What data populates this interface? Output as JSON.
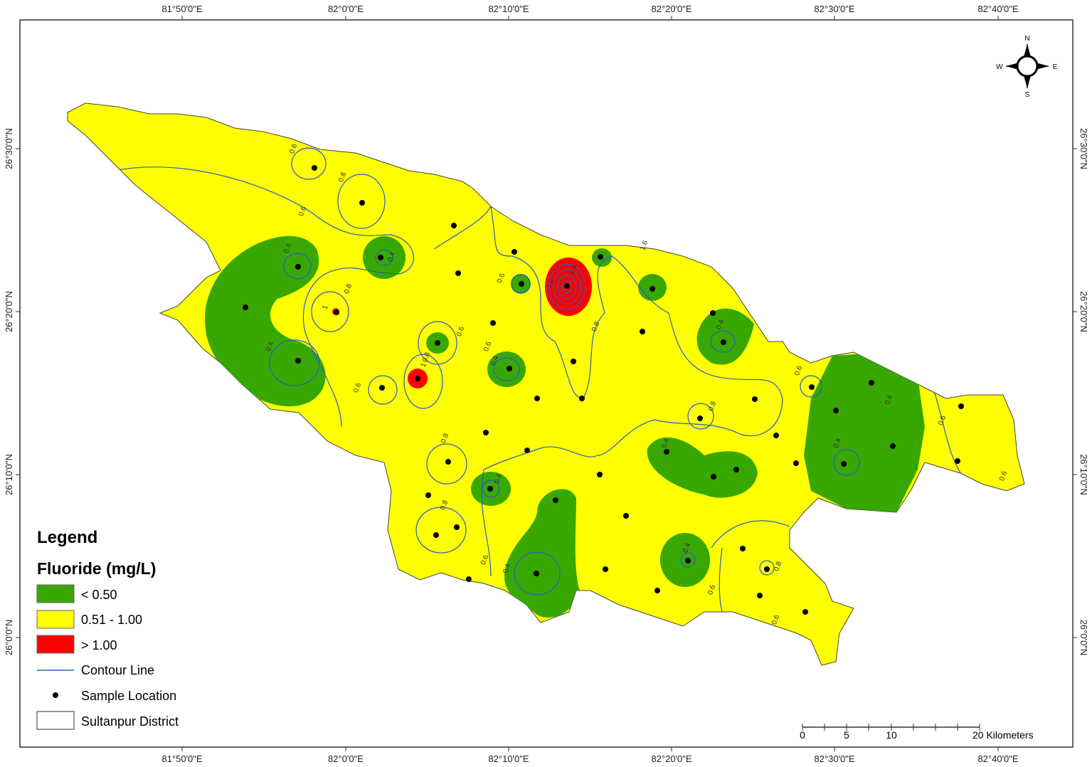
{
  "map": {
    "x_ticks": [
      "81°50'0\"E",
      "82°0'0\"E",
      "82°10'0\"E",
      "82°20'0\"E",
      "82°30'0\"E",
      "82°40'0\"E"
    ],
    "y_ticks": [
      "26°30'0\"N",
      "26°20'0\"N",
      "26°10'0\"N",
      "26°0'0\"N"
    ],
    "compass": {
      "north": "N",
      "south": "S",
      "east": "E",
      "west": "W"
    },
    "legend": {
      "title": "Legend",
      "subtitle": "Fluoride (mg/L)",
      "classes": [
        {
          "label": "< 0.50",
          "color": "#38a800"
        },
        {
          "label": "0.51 - 1.00",
          "color": "#ffff00"
        },
        {
          "label": "> 1.00",
          "color": "#ff0000"
        }
      ],
      "contour": {
        "label": "Contour Line",
        "color": "#2860c0"
      },
      "sample": {
        "label": "Sample Location"
      },
      "district": {
        "label": "Sultanpur District"
      }
    },
    "scale_bar": {
      "labels": [
        "0",
        "5",
        "10",
        "20 Kilometers"
      ]
    },
    "contour_labels": [
      "0.6",
      "0.8",
      "0.6",
      "0.4",
      "0.4",
      "0.8",
      "1",
      "0.4",
      "0.6",
      "0.8",
      "1",
      "0.6",
      "0.6",
      "0.6",
      "0.4",
      "1.6",
      "1.4",
      "0.8",
      "1.6",
      "0.4",
      "0.8",
      "0.6",
      "0.4",
      "0.6",
      "0.4",
      "0.4",
      "0.8",
      "0.4",
      "0.8",
      "0.6",
      "0.4",
      "0.4",
      "0.8",
      "0.6",
      "0.6",
      "0.6"
    ]
  }
}
